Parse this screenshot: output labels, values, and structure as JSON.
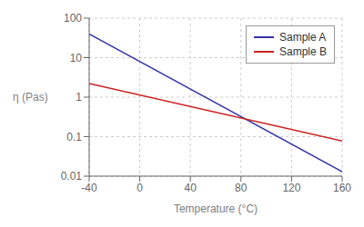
{
  "chart_data": {
    "type": "line",
    "xlabel": "Temperature (°C)",
    "ylabel": "η (Pas)",
    "x": [
      -40,
      160
    ],
    "series": [
      {
        "name": "Sample A",
        "color": "#3333aa",
        "values": [
          40.0,
          0.013
        ]
      },
      {
        "name": "Sample B",
        "color": "#cc2222",
        "values": [
          2.2,
          0.078
        ]
      }
    ],
    "xlim": [
      -40,
      160
    ],
    "ylim": [
      0.01,
      100
    ],
    "xticks": [
      -40,
      0,
      40,
      80,
      120,
      160
    ],
    "yticks": [
      0.01,
      0.1,
      1,
      10,
      100
    ],
    "log": "y",
    "grid": true,
    "legend": "upper right"
  }
}
